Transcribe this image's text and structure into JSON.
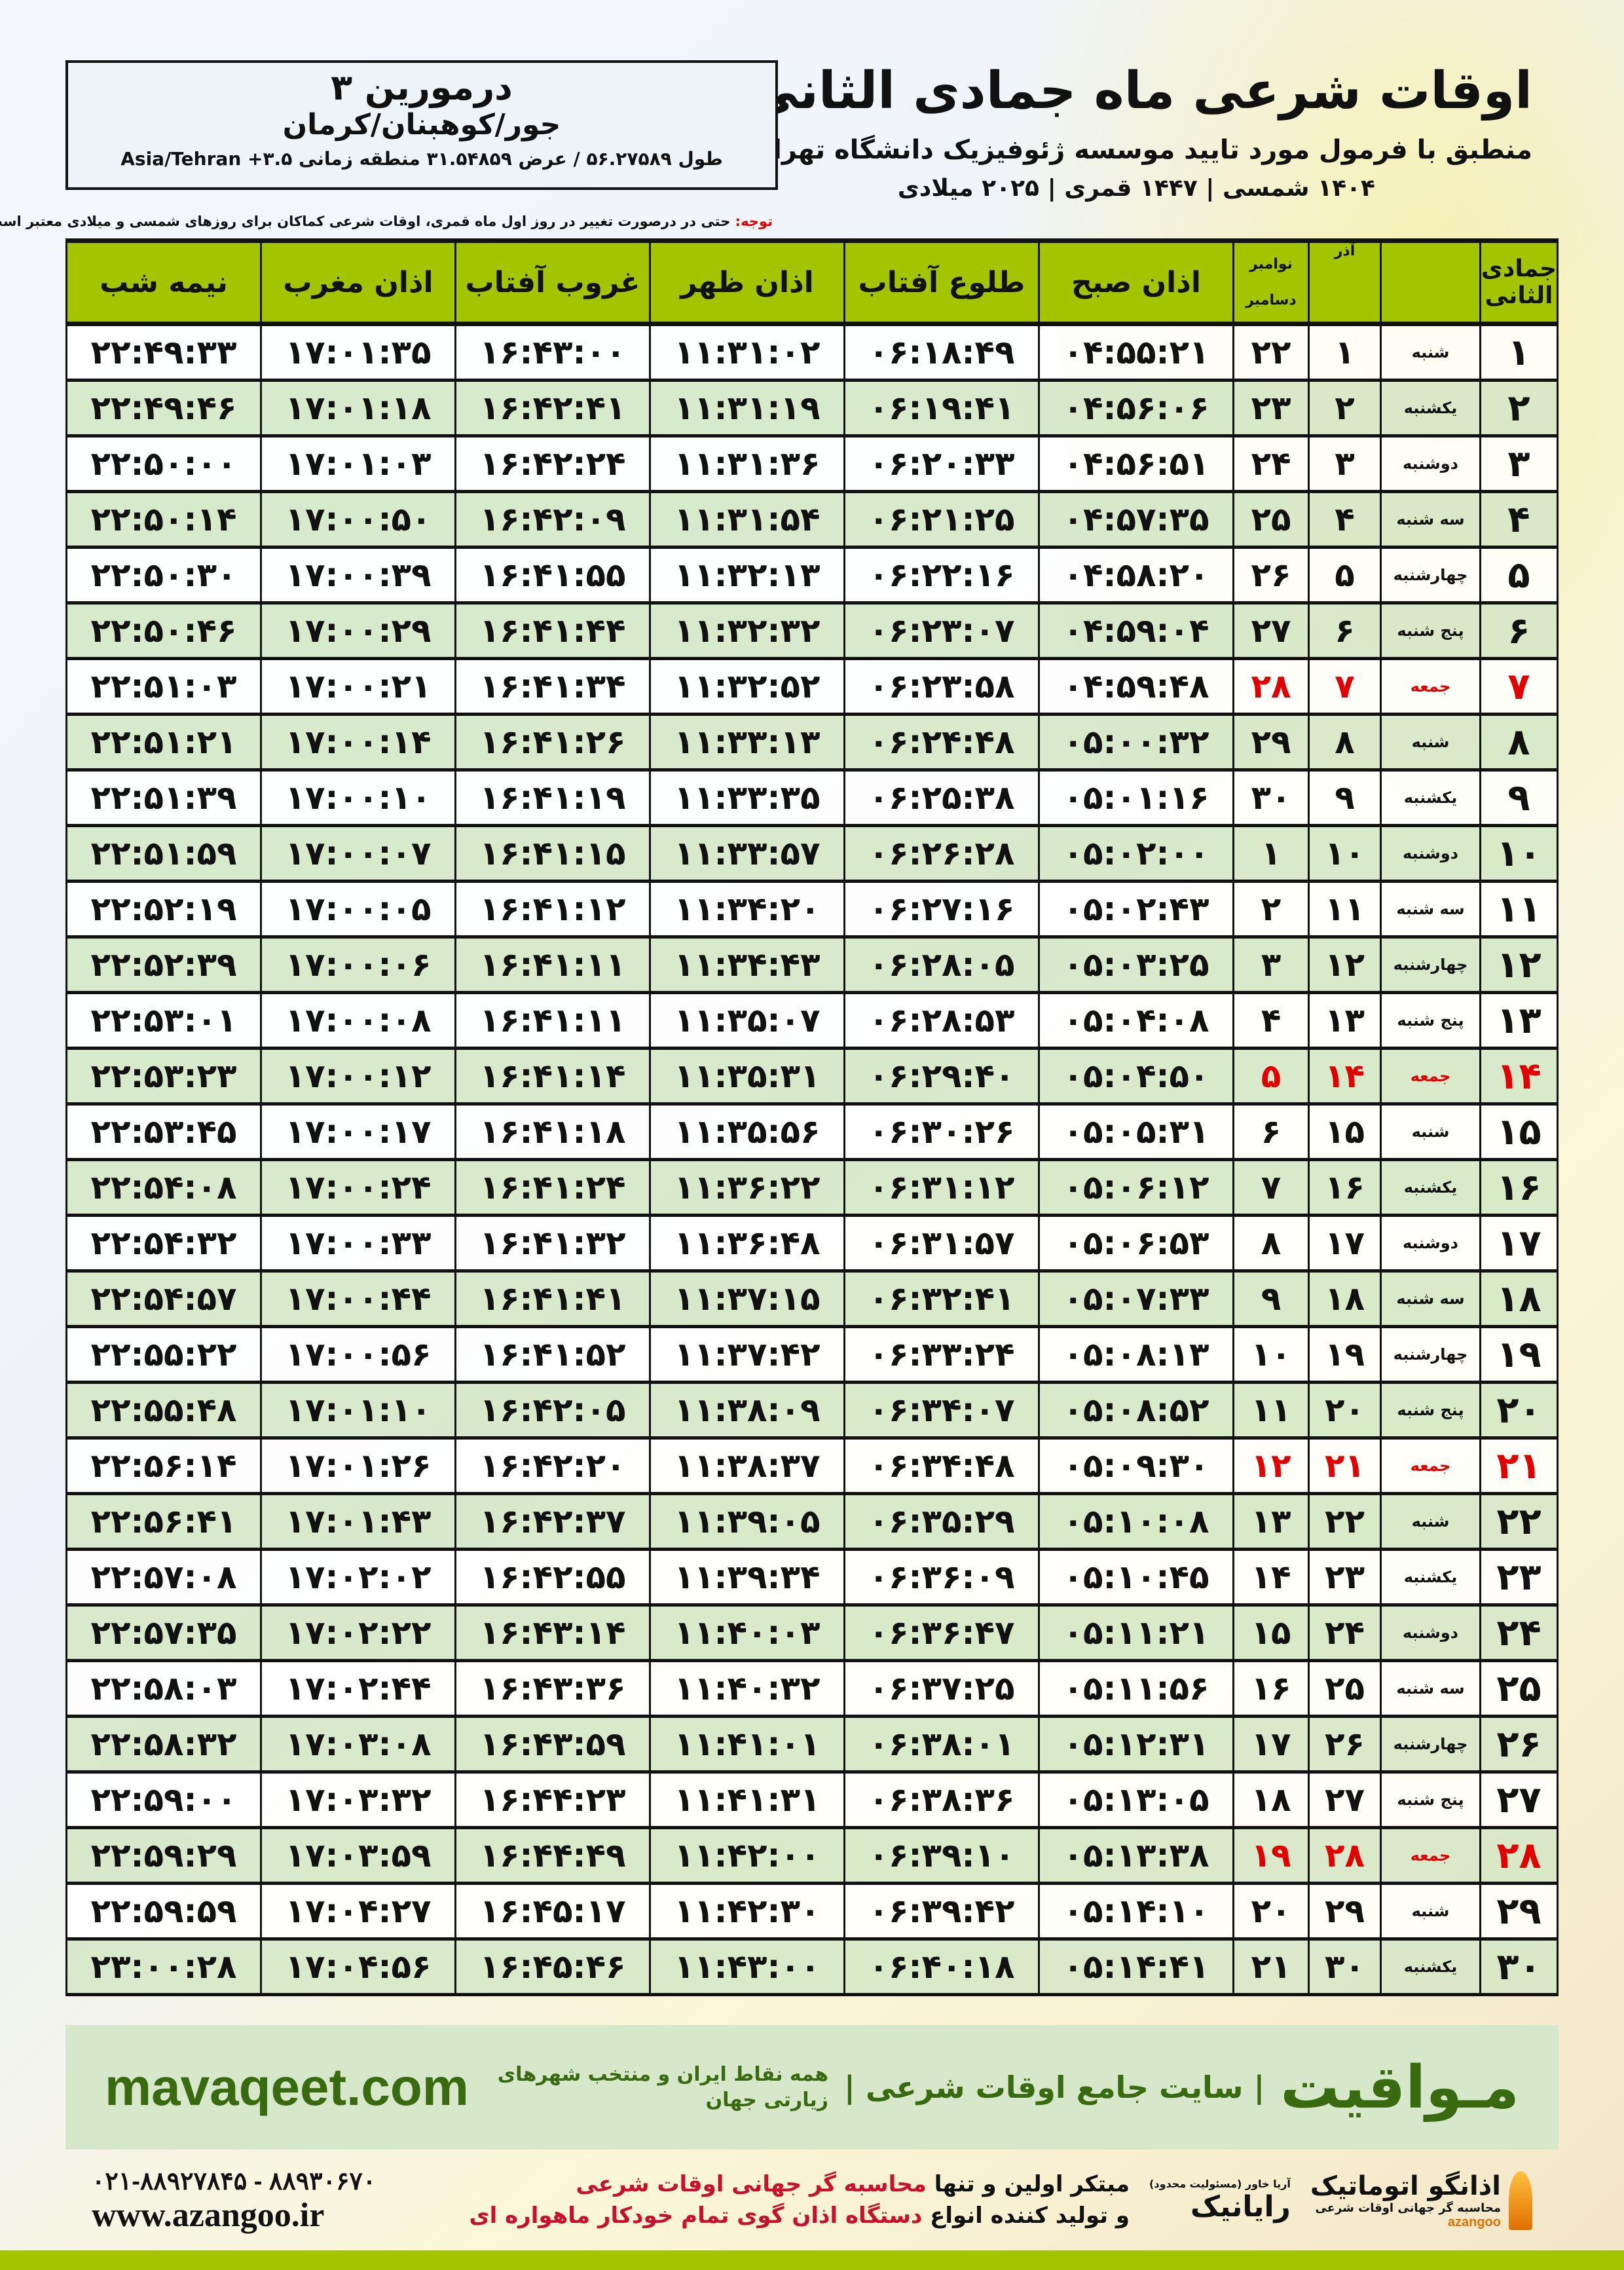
{
  "header": {
    "title": "اوقات شرعی ماه جمادی الثانی",
    "subtitle": "منطبق با فرمول مورد تایید موسسه ژئوفیزیک دانشگاه تهران",
    "years": "۱۴۰۴ شمسی | ۱۴۴۷ قمری | ۲۰۲۵ میلادی"
  },
  "location": {
    "name": "درمورین ۳",
    "region": "جور/کوهبنان/کرمان",
    "coords": "طول ۵۶.۲۷۵۸۹ / عرض ۳۱.۵۴۸۵۹ منطقه زمانی ۳.۵+ Asia/Tehran"
  },
  "note": {
    "label": "توجه:",
    "text": " حتی در درصورت تغییر در روز اول ماه قمری، اوقات شرعی کماکان برای روزهای شمسی و میلادی معتبر است."
  },
  "table": {
    "headers": {
      "hijri": "جمادی الثانی",
      "azar": "آذر",
      "gregorian_top": "نوامبر",
      "gregorian_bottom": "دسامبر",
      "fajr": "اذان صبح",
      "sunrise": "طلوع آفتاب",
      "dhuhr": "اذان ظهر",
      "sunset": "غروب آفتاب",
      "maghrib": "اذان مغرب",
      "midnight": "نیمه شب"
    },
    "friday_color": "#e00000",
    "header_color": "#a5c400",
    "rows": [
      [
        "۱",
        "شنبه",
        "۱",
        "۲۲",
        "۰۴:۵۵:۲۱",
        "۰۶:۱۸:۴۹",
        "۱۱:۳۱:۰۲",
        "۱۶:۴۳:۰۰",
        "۱۷:۰۱:۳۵",
        "۲۲:۴۹:۳۳"
      ],
      [
        "۲",
        "یکشنبه",
        "۲",
        "۲۳",
        "۰۴:۵۶:۰۶",
        "۰۶:۱۹:۴۱",
        "۱۱:۳۱:۱۹",
        "۱۶:۴۲:۴۱",
        "۱۷:۰۱:۱۸",
        "۲۲:۴۹:۴۶"
      ],
      [
        "۳",
        "دوشنبه",
        "۳",
        "۲۴",
        "۰۴:۵۶:۵۱",
        "۰۶:۲۰:۳۳",
        "۱۱:۳۱:۳۶",
        "۱۶:۴۲:۲۴",
        "۱۷:۰۱:۰۳",
        "۲۲:۵۰:۰۰"
      ],
      [
        "۴",
        "سه شنبه",
        "۴",
        "۲۵",
        "۰۴:۵۷:۳۵",
        "۰۶:۲۱:۲۵",
        "۱۱:۳۱:۵۴",
        "۱۶:۴۲:۰۹",
        "۱۷:۰۰:۵۰",
        "۲۲:۵۰:۱۴"
      ],
      [
        "۵",
        "چهارشنبه",
        "۵",
        "۲۶",
        "۰۴:۵۸:۲۰",
        "۰۶:۲۲:۱۶",
        "۱۱:۳۲:۱۳",
        "۱۶:۴۱:۵۵",
        "۱۷:۰۰:۳۹",
        "۲۲:۵۰:۳۰"
      ],
      [
        "۶",
        "پنج شنبه",
        "۶",
        "۲۷",
        "۰۴:۵۹:۰۴",
        "۰۶:۲۳:۰۷",
        "۱۱:۳۲:۳۲",
        "۱۶:۴۱:۴۴",
        "۱۷:۰۰:۲۹",
        "۲۲:۵۰:۴۶"
      ],
      [
        "۷",
        "جمعه",
        "۷",
        "۲۸",
        "۰۴:۵۹:۴۸",
        "۰۶:۲۳:۵۸",
        "۱۱:۳۲:۵۲",
        "۱۶:۴۱:۳۴",
        "۱۷:۰۰:۲۱",
        "۲۲:۵۱:۰۳"
      ],
      [
        "۸",
        "شنبه",
        "۸",
        "۲۹",
        "۰۵:۰۰:۳۲",
        "۰۶:۲۴:۴۸",
        "۱۱:۳۳:۱۳",
        "۱۶:۴۱:۲۶",
        "۱۷:۰۰:۱۴",
        "۲۲:۵۱:۲۱"
      ],
      [
        "۹",
        "یکشنبه",
        "۹",
        "۳۰",
        "۰۵:۰۱:۱۶",
        "۰۶:۲۵:۳۸",
        "۱۱:۳۳:۳۵",
        "۱۶:۴۱:۱۹",
        "۱۷:۰۰:۱۰",
        "۲۲:۵۱:۳۹"
      ],
      [
        "۱۰",
        "دوشنبه",
        "۱۰",
        "۱",
        "۰۵:۰۲:۰۰",
        "۰۶:۲۶:۲۸",
        "۱۱:۳۳:۵۷",
        "۱۶:۴۱:۱۵",
        "۱۷:۰۰:۰۷",
        "۲۲:۵۱:۵۹"
      ],
      [
        "۱۱",
        "سه شنبه",
        "۱۱",
        "۲",
        "۰۵:۰۲:۴۳",
        "۰۶:۲۷:۱۶",
        "۱۱:۳۴:۲۰",
        "۱۶:۴۱:۱۲",
        "۱۷:۰۰:۰۵",
        "۲۲:۵۲:۱۹"
      ],
      [
        "۱۲",
        "چهارشنبه",
        "۱۲",
        "۳",
        "۰۵:۰۳:۲۵",
        "۰۶:۲۸:۰۵",
        "۱۱:۳۴:۴۳",
        "۱۶:۴۱:۱۱",
        "۱۷:۰۰:۰۶",
        "۲۲:۵۲:۳۹"
      ],
      [
        "۱۳",
        "پنج شنبه",
        "۱۳",
        "۴",
        "۰۵:۰۴:۰۸",
        "۰۶:۲۸:۵۳",
        "۱۱:۳۵:۰۷",
        "۱۶:۴۱:۱۱",
        "۱۷:۰۰:۰۸",
        "۲۲:۵۳:۰۱"
      ],
      [
        "۱۴",
        "جمعه",
        "۱۴",
        "۵",
        "۰۵:۰۴:۵۰",
        "۰۶:۲۹:۴۰",
        "۱۱:۳۵:۳۱",
        "۱۶:۴۱:۱۴",
        "۱۷:۰۰:۱۲",
        "۲۲:۵۳:۲۳"
      ],
      [
        "۱۵",
        "شنبه",
        "۱۵",
        "۶",
        "۰۵:۰۵:۳۱",
        "۰۶:۳۰:۲۶",
        "۱۱:۳۵:۵۶",
        "۱۶:۴۱:۱۸",
        "۱۷:۰۰:۱۷",
        "۲۲:۵۳:۴۵"
      ],
      [
        "۱۶",
        "یکشنبه",
        "۱۶",
        "۷",
        "۰۵:۰۶:۱۲",
        "۰۶:۳۱:۱۲",
        "۱۱:۳۶:۲۲",
        "۱۶:۴۱:۲۴",
        "۱۷:۰۰:۲۴",
        "۲۲:۵۴:۰۸"
      ],
      [
        "۱۷",
        "دوشنبه",
        "۱۷",
        "۸",
        "۰۵:۰۶:۵۳",
        "۰۶:۳۱:۵۷",
        "۱۱:۳۶:۴۸",
        "۱۶:۴۱:۳۲",
        "۱۷:۰۰:۳۳",
        "۲۲:۵۴:۳۲"
      ],
      [
        "۱۸",
        "سه شنبه",
        "۱۸",
        "۹",
        "۰۵:۰۷:۳۳",
        "۰۶:۳۲:۴۱",
        "۱۱:۳۷:۱۵",
        "۱۶:۴۱:۴۱",
        "۱۷:۰۰:۴۴",
        "۲۲:۵۴:۵۷"
      ],
      [
        "۱۹",
        "چهارشنبه",
        "۱۹",
        "۱۰",
        "۰۵:۰۸:۱۳",
        "۰۶:۳۳:۲۴",
        "۱۱:۳۷:۴۲",
        "۱۶:۴۱:۵۲",
        "۱۷:۰۰:۵۶",
        "۲۲:۵۵:۲۲"
      ],
      [
        "۲۰",
        "پنج شنبه",
        "۲۰",
        "۱۱",
        "۰۵:۰۸:۵۲",
        "۰۶:۳۴:۰۷",
        "۱۱:۳۸:۰۹",
        "۱۶:۴۲:۰۵",
        "۱۷:۰۱:۱۰",
        "۲۲:۵۵:۴۸"
      ],
      [
        "۲۱",
        "جمعه",
        "۲۱",
        "۱۲",
        "۰۵:۰۹:۳۰",
        "۰۶:۳۴:۴۸",
        "۱۱:۳۸:۳۷",
        "۱۶:۴۲:۲۰",
        "۱۷:۰۱:۲۶",
        "۲۲:۵۶:۱۴"
      ],
      [
        "۲۲",
        "شنبه",
        "۲۲",
        "۱۳",
        "۰۵:۱۰:۰۸",
        "۰۶:۳۵:۲۹",
        "۱۱:۳۹:۰۵",
        "۱۶:۴۲:۳۷",
        "۱۷:۰۱:۴۳",
        "۲۲:۵۶:۴۱"
      ],
      [
        "۲۳",
        "یکشنبه",
        "۲۳",
        "۱۴",
        "۰۵:۱۰:۴۵",
        "۰۶:۳۶:۰۹",
        "۱۱:۳۹:۳۴",
        "۱۶:۴۲:۵۵",
        "۱۷:۰۲:۰۲",
        "۲۲:۵۷:۰۸"
      ],
      [
        "۲۴",
        "دوشنبه",
        "۲۴",
        "۱۵",
        "۰۵:۱۱:۲۱",
        "۰۶:۳۶:۴۷",
        "۱۱:۴۰:۰۳",
        "۱۶:۴۳:۱۴",
        "۱۷:۰۲:۲۲",
        "۲۲:۵۷:۳۵"
      ],
      [
        "۲۵",
        "سه شنبه",
        "۲۵",
        "۱۶",
        "۰۵:۱۱:۵۶",
        "۰۶:۳۷:۲۵",
        "۱۱:۴۰:۳۲",
        "۱۶:۴۳:۳۶",
        "۱۷:۰۲:۴۴",
        "۲۲:۵۸:۰۳"
      ],
      [
        "۲۶",
        "چهارشنبه",
        "۲۶",
        "۱۷",
        "۰۵:۱۲:۳۱",
        "۰۶:۳۸:۰۱",
        "۱۱:۴۱:۰۱",
        "۱۶:۴۳:۵۹",
        "۱۷:۰۳:۰۸",
        "۲۲:۵۸:۳۲"
      ],
      [
        "۲۷",
        "پنج شنبه",
        "۲۷",
        "۱۸",
        "۰۵:۱۳:۰۵",
        "۰۶:۳۸:۳۶",
        "۱۱:۴۱:۳۱",
        "۱۶:۴۴:۲۳",
        "۱۷:۰۳:۳۲",
        "۲۲:۵۹:۰۰"
      ],
      [
        "۲۸",
        "جمعه",
        "۲۸",
        "۱۹",
        "۰۵:۱۳:۳۸",
        "۰۶:۳۹:۱۰",
        "۱۱:۴۲:۰۰",
        "۱۶:۴۴:۴۹",
        "۱۷:۰۳:۵۹",
        "۲۲:۵۹:۲۹"
      ],
      [
        "۲۹",
        "شنبه",
        "۲۹",
        "۲۰",
        "۰۵:۱۴:۱۰",
        "۰۶:۳۹:۴۲",
        "۱۱:۴۲:۳۰",
        "۱۶:۴۵:۱۷",
        "۱۷:۰۴:۲۷",
        "۲۲:۵۹:۵۹"
      ],
      [
        "۳۰",
        "یکشنبه",
        "۳۰",
        "۲۱",
        "۰۵:۱۴:۴۱",
        "۰۶:۴۰:۱۸",
        "۱۱:۴۳:۰۰",
        "۱۶:۴۵:۴۶",
        "۱۷:۰۴:۵۶",
        "۲۳:۰۰:۲۸"
      ]
    ]
  },
  "banner": {
    "brand": "مـواقیت",
    "tagline": "| سایت جامع اوقات شرعی |",
    "tagline2": "همه نقاط ایران و منتخب شهرهای زیارتی جهان",
    "site": "mavaqeet.com"
  },
  "footer": {
    "logo1": "اذانگو اتوماتیک",
    "logo1_sub": "محاسبه گر جهانی اوقات شرعی",
    "logo1_latin": "azangoo",
    "logo2": "رایانیک",
    "logo2_sub": "آریا خاور (مسئولیت محدود)",
    "promo1_a": "مبتکر اولین و تنها ",
    "promo1_b": "محاسبه گر جهانی اوقات شرعی",
    "promo2_a": "و تولید کننده انواع ",
    "promo2_b": "دستگاه اذان گوی تمام خودکار ماهواره ای",
    "phone": "۰۲۱-۸۸۹۲۷۸۴۵ - ۸۸۹۳۰۶۷۰",
    "website": "www.azangoo.ir"
  }
}
